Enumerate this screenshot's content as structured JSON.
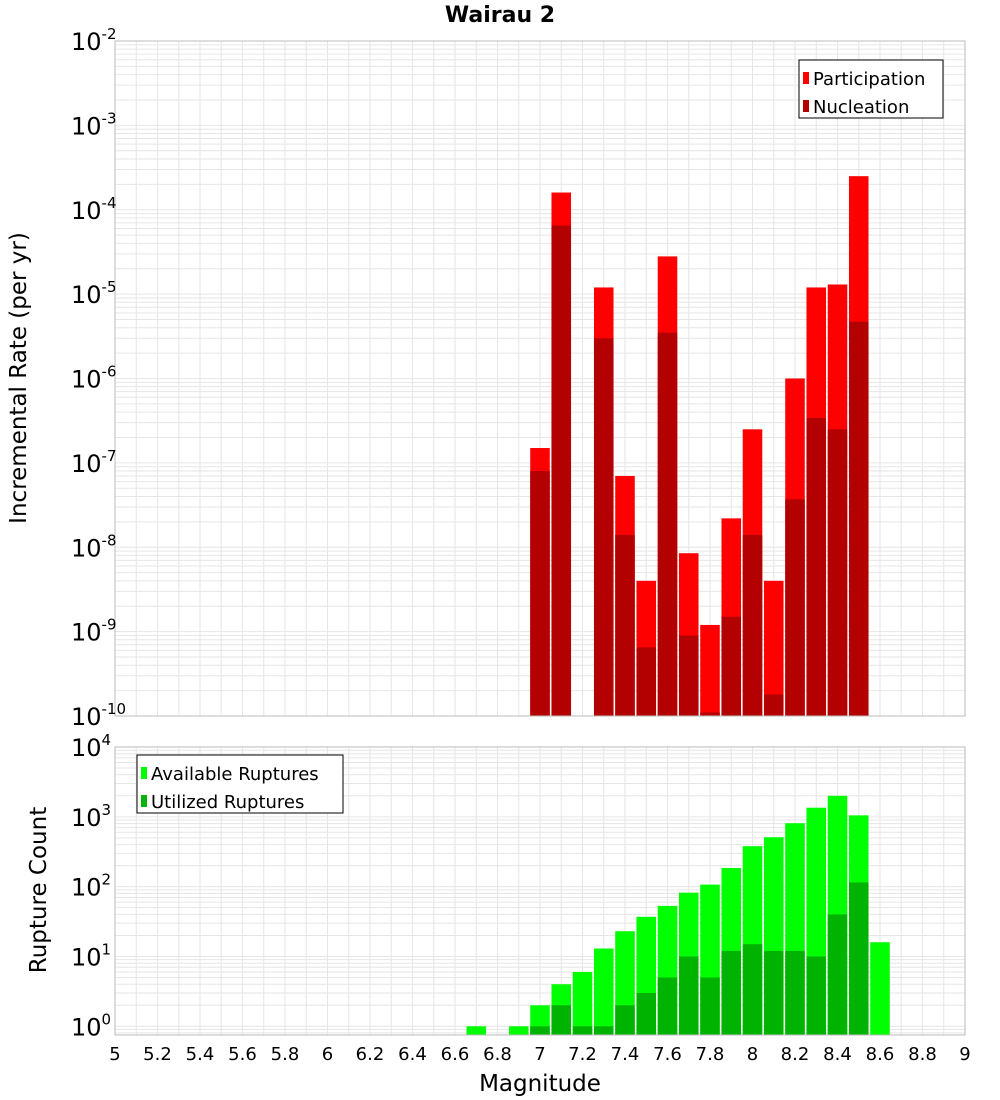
{
  "title": "Wairau 2",
  "colors": {
    "participation": "#ff0000",
    "nucleation": "#b30000",
    "available": "#00ff00",
    "utilized": "#00b300",
    "grid": "#e6e6e6",
    "frame": "#bbbbbb"
  },
  "chart_data": [
    {
      "type": "bar",
      "ylabel": "Incremental Rate (per yr)",
      "yscale": "log",
      "ylim": [
        1e-10,
        0.01
      ],
      "xlim": [
        5,
        9
      ],
      "grid": true,
      "legend_position": "top-right",
      "ytick_labels": [
        {
          "base": "10",
          "exp": "-10"
        },
        {
          "base": "10",
          "exp": "-9"
        },
        {
          "base": "10",
          "exp": "-8"
        },
        {
          "base": "10",
          "exp": "-7"
        },
        {
          "base": "10",
          "exp": "-6"
        },
        {
          "base": "10",
          "exp": "-5"
        },
        {
          "base": "10",
          "exp": "-4"
        },
        {
          "base": "10",
          "exp": "-3"
        },
        {
          "base": "10",
          "exp": "-2"
        }
      ],
      "series": [
        {
          "name": "Participation",
          "color": "#ff0000",
          "x": [
            7.0,
            7.1,
            7.3,
            7.4,
            7.5,
            7.6,
            7.7,
            7.8,
            7.9,
            8.0,
            8.1,
            8.2,
            8.3,
            8.4,
            8.5
          ],
          "values": [
            1.5e-07,
            0.00016,
            1.2e-05,
            7e-08,
            4e-09,
            2.8e-05,
            8.5e-09,
            1.2e-09,
            2.2e-08,
            2.5e-07,
            4e-09,
            1e-06,
            1.2e-05,
            1.3e-05,
            0.00025
          ]
        },
        {
          "name": "Nucleation",
          "color": "#b30000",
          "x": [
            7.0,
            7.1,
            7.3,
            7.4,
            7.5,
            7.6,
            7.7,
            7.8,
            7.9,
            8.0,
            8.1,
            8.2,
            8.3,
            8.4,
            8.5
          ],
          "values": [
            8e-08,
            6.5e-05,
            3e-06,
            1.4e-08,
            6.5e-10,
            3.5e-06,
            9e-10,
            1.1e-10,
            1.5e-09,
            1.4e-08,
            1.8e-10,
            3.7e-08,
            3.4e-07,
            2.5e-07,
            4.7e-06
          ]
        }
      ]
    },
    {
      "type": "bar",
      "xlabel": "Magnitude",
      "ylabel": "Rupture Count",
      "yscale": "log",
      "ylim": [
        0.75,
        10000.0
      ],
      "xlim": [
        5,
        9
      ],
      "grid": true,
      "legend_position": "top-left",
      "xtick_labels": [
        "5",
        "5.2",
        "5.4",
        "5.6",
        "5.8",
        "6",
        "6.2",
        "6.4",
        "6.6",
        "6.8",
        "7",
        "7.2",
        "7.4",
        "7.6",
        "7.8",
        "8",
        "8.2",
        "8.4",
        "8.6",
        "8.8",
        "9"
      ],
      "ytick_labels": [
        {
          "base": "10",
          "exp": "0"
        },
        {
          "base": "10",
          "exp": "1"
        },
        {
          "base": "10",
          "exp": "2"
        },
        {
          "base": "10",
          "exp": "3"
        },
        {
          "base": "10",
          "exp": "4"
        }
      ],
      "series": [
        {
          "name": "Available Ruptures",
          "color": "#00ff00",
          "x": [
            6.7,
            6.9,
            7.0,
            7.1,
            7.2,
            7.3,
            7.4,
            7.5,
            7.6,
            7.7,
            7.8,
            7.9,
            8.0,
            8.1,
            8.2,
            8.3,
            8.4,
            8.5,
            8.6
          ],
          "values": [
            1,
            1,
            2,
            4,
            6,
            13,
            23,
            37,
            53,
            82,
            107,
            185,
            380,
            510,
            810,
            1350,
            2000,
            1050,
            16
          ]
        },
        {
          "name": "Utilized Ruptures",
          "color": "#00b300",
          "x": [
            7.0,
            7.1,
            7.2,
            7.3,
            7.4,
            7.5,
            7.6,
            7.7,
            7.8,
            7.9,
            8.0,
            8.1,
            8.2,
            8.3,
            8.4,
            8.5
          ],
          "values": [
            1,
            2,
            1,
            1,
            2,
            3,
            5,
            10,
            5,
            12,
            15,
            12,
            12,
            10,
            40,
            115
          ]
        }
      ]
    }
  ]
}
